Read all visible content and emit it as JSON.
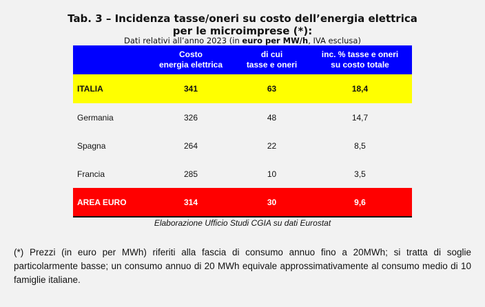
{
  "title_line1": "Tab. 3 – Incidenza tasse/oneri su costo dell’energia elettrica",
  "title_line2": "per le microimprese (*):",
  "subtitle": {
    "pre": "Dati relativi all’anno 2023 (in ",
    "bold": "euro per MW/h",
    "post": ", IVA esclusa)"
  },
  "table": {
    "headers": [
      {
        "line1": "Costo",
        "line2": "energia elettrica"
      },
      {
        "line1": "di cui",
        "line2": "tasse e oneri"
      },
      {
        "line1": "inc. % tasse e oneri",
        "line2": "su costo totale"
      }
    ],
    "rows": [
      {
        "label": "ITALIA",
        "costo": "341",
        "tasse": "63",
        "inc": "18,4"
      },
      {
        "label": "Germania",
        "costo": "326",
        "tasse": "48",
        "inc": "14,7"
      },
      {
        "label": "Spagna",
        "costo": "264",
        "tasse": "22",
        "inc": "8,5"
      },
      {
        "label": "Francia",
        "costo": "285",
        "tasse": "10",
        "inc": "3,5"
      },
      {
        "label": "AREA EURO",
        "costo": "314",
        "tasse": "30",
        "inc": "9,6"
      }
    ]
  },
  "source": "Elaborazione Ufficio Studi CGIA su dati Eurostat",
  "footnote": "(*) Prezzi (in euro per MWh) riferiti alla fascia di consumo annuo fino a 20MWh; si tratta di soglie particolarmente basse; un consumo annuo di 20 MWh equivale approssimativamente al consumo medio di 10 famiglie italiane.",
  "colors": {
    "header": "#0000ff",
    "italia": "#ffff00",
    "area_euro": "#ff0000"
  }
}
